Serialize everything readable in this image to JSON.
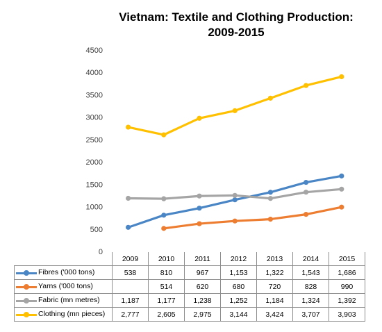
{
  "chart_data": {
    "type": "line",
    "title": "Vietnam: Textile and Clothing Production:",
    "subtitle": "2009-2015",
    "categories": [
      "2009",
      "2010",
      "2011",
      "2012",
      "2013",
      "2014",
      "2015"
    ],
    "ylim": [
      0,
      4500
    ],
    "yticks": [
      0,
      500,
      1000,
      1500,
      2000,
      2500,
      3000,
      3500,
      4000,
      4500
    ],
    "grid": false,
    "legend": "data-table",
    "series": [
      {
        "name": "Fibres ('000 tons)",
        "color": "#4a86c5",
        "values": [
          538,
          810,
          967,
          1153,
          1322,
          1543,
          1686
        ],
        "labels": [
          "538",
          "810",
          "967",
          "1,153",
          "1,322",
          "1,543",
          "1,686"
        ]
      },
      {
        "name": "Yarns ('000 tons)",
        "color": "#ed7d31",
        "values": [
          null,
          514,
          620,
          680,
          720,
          828,
          990
        ],
        "labels": [
          "",
          "514",
          "620",
          "680",
          "720",
          "828",
          "990"
        ]
      },
      {
        "name": "Fabric (mn metres)",
        "color": "#a5a5a5",
        "values": [
          1187,
          1177,
          1238,
          1252,
          1184,
          1324,
          1392
        ],
        "labels": [
          "1,187",
          "1,177",
          "1,238",
          "1,252",
          "1,184",
          "1,324",
          "1,392"
        ]
      },
      {
        "name": "Clothing (mn pieces)",
        "color": "#ffc000",
        "values": [
          2777,
          2605,
          2975,
          3144,
          3424,
          3707,
          3903
        ],
        "labels": [
          "2,777",
          "2,605",
          "2,975",
          "3,144",
          "3,424",
          "3,707",
          "3,903"
        ]
      }
    ]
  }
}
